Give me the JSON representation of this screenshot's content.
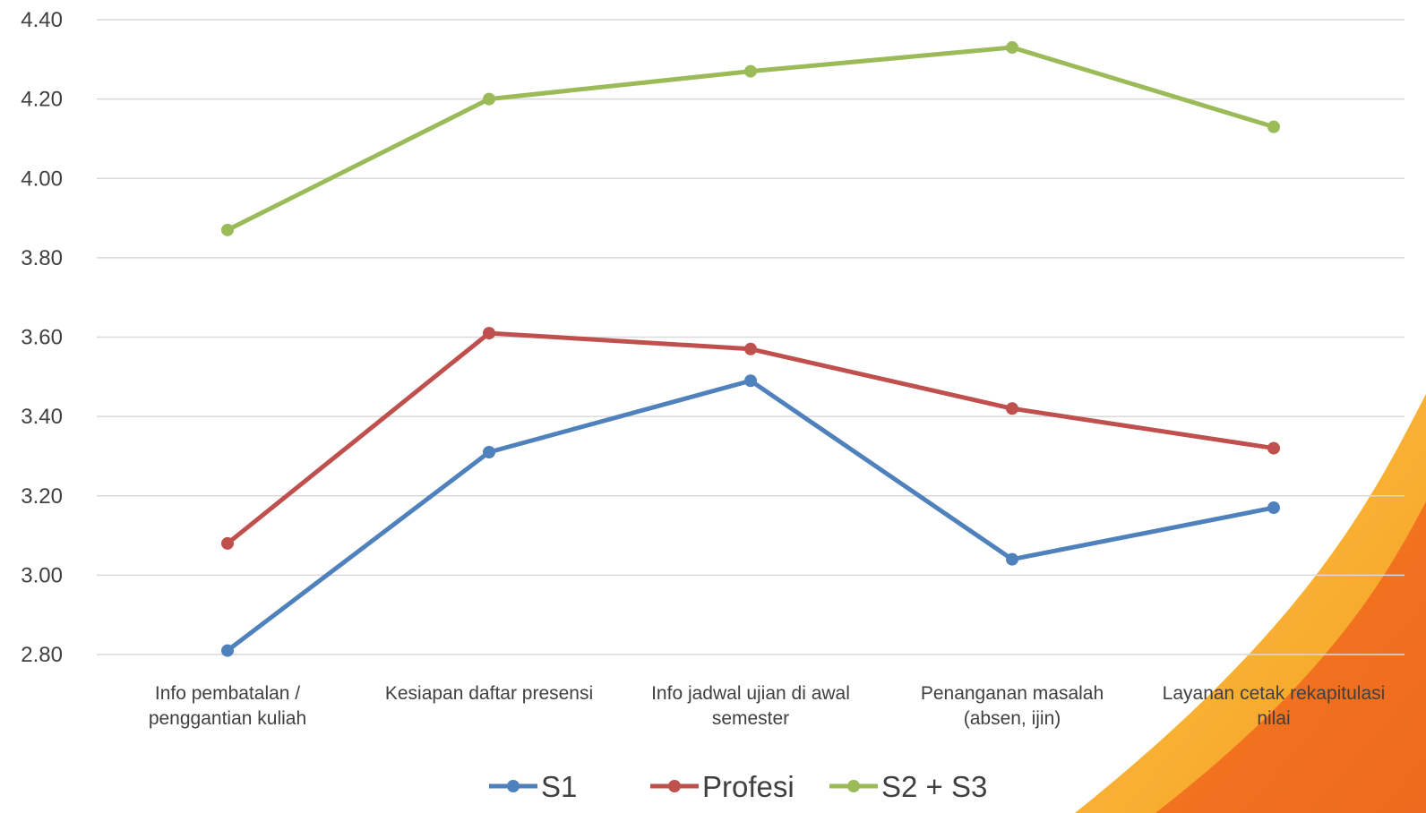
{
  "chart_data": {
    "type": "line",
    "title": "",
    "xlabel": "",
    "ylabel": "",
    "categories": [
      [
        "Info pembatalan /",
        "penggantian kuliah"
      ],
      [
        "Kesiapan daftar presensi"
      ],
      [
        "Info jadwal ujian di awal",
        "semester"
      ],
      [
        "Penanganan masalah",
        "(absen, ijin)"
      ],
      [
        "Layanan cetak rekapitulasi",
        "nilai"
      ]
    ],
    "ylim": [
      2.8,
      4.4
    ],
    "yticks": [
      "2.80",
      "3.00",
      "3.20",
      "3.40",
      "3.60",
      "3.80",
      "4.00",
      "4.20",
      "4.40"
    ],
    "grid": true,
    "legend_position": "bottom",
    "series": [
      {
        "name": "S1",
        "color": "#4F81BD",
        "values": [
          2.81,
          3.31,
          3.49,
          3.04,
          3.17
        ]
      },
      {
        "name": "Profesi",
        "color": "#C0504D",
        "values": [
          3.08,
          3.61,
          3.57,
          3.42,
          3.32
        ]
      },
      {
        "name": "S2 + S3",
        "color": "#9BBB59",
        "values": [
          3.87,
          4.2,
          4.27,
          4.33,
          4.13
        ]
      }
    ]
  }
}
